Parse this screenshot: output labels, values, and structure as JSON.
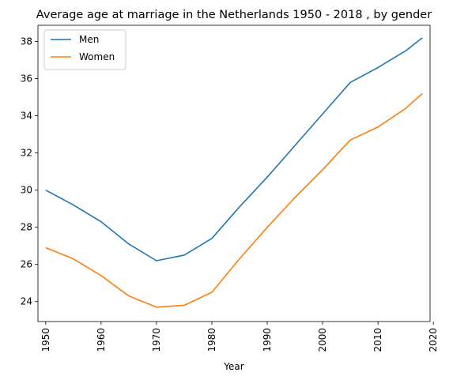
{
  "chart_data": {
    "type": "line",
    "title": "Average age at marriage in the Netherlands 1950 - 2018 , by gender",
    "xlabel": "Year",
    "ylabel": "",
    "xlim": [
      1948.6,
      2019.4
    ],
    "ylim": [
      22.925,
      38.875
    ],
    "xticks": [
      1950,
      1960,
      1970,
      1980,
      1990,
      2000,
      2010,
      2020
    ],
    "yticks": [
      24,
      26,
      28,
      30,
      32,
      34,
      36,
      38
    ],
    "grid": false,
    "legend": "upper-left",
    "x": [
      1950,
      1955,
      1960,
      1965,
      1970,
      1975,
      1980,
      1985,
      1990,
      1995,
      2000,
      2005,
      2010,
      2015,
      2018
    ],
    "series": [
      {
        "name": "Men",
        "color": "#1f77b4",
        "values": [
          30.0,
          29.2,
          28.3,
          27.1,
          26.2,
          26.5,
          27.4,
          29.1,
          30.7,
          32.4,
          34.1,
          35.8,
          36.6,
          37.5,
          38.2
        ]
      },
      {
        "name": "Women",
        "color": "#ff7f0e",
        "values": [
          26.9,
          26.3,
          25.4,
          24.3,
          23.7,
          23.8,
          24.5,
          26.3,
          28.0,
          29.6,
          31.1,
          32.7,
          33.4,
          34.4,
          35.2
        ]
      }
    ]
  }
}
